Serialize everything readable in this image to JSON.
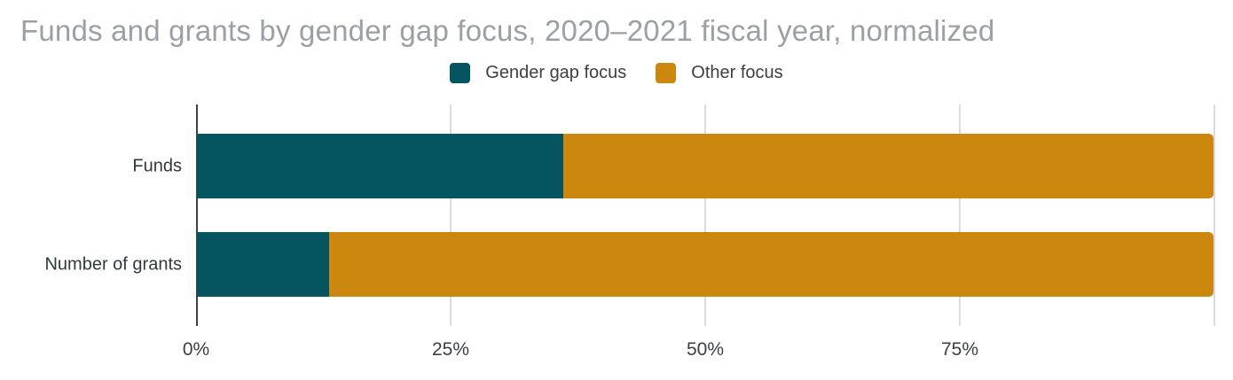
{
  "title": "Funds and grants by gender gap focus, 2020–2021 fiscal year, normalized",
  "colors": {
    "background": "#ffffff",
    "title_text": "#9aa0a6",
    "legend_text": "#3c4043",
    "row_label_text": "#2f3a3e",
    "axis_label_text": "#3c4043",
    "axis_line": "#424242",
    "gridline": "#d9dce0",
    "gender_gap_focus": "#04555f",
    "other_focus": "#cc870f"
  },
  "legend": {
    "items": [
      {
        "label": "Gender gap focus",
        "color": "#04555f"
      },
      {
        "label": "Other focus",
        "color": "#cc870f"
      }
    ]
  },
  "chart_data": {
    "type": "bar",
    "orientation": "horizontal",
    "stacked": true,
    "normalized": true,
    "title": "Funds and grants by gender gap focus, 2020–2021 fiscal year, normalized",
    "categories": [
      "Funds",
      "Number of grants"
    ],
    "series": [
      {
        "name": "Gender gap focus",
        "color": "#04555f",
        "values": [
          36,
          13
        ]
      },
      {
        "name": "Other focus",
        "color": "#cc870f",
        "values": [
          64,
          87
        ]
      }
    ],
    "xlabel": "",
    "ylabel": "",
    "xlim": [
      0,
      100
    ],
    "x_ticks": [
      {
        "value": 0,
        "label": "0%"
      },
      {
        "value": 25,
        "label": "25%"
      },
      {
        "value": 50,
        "label": "50%"
      },
      {
        "value": 75,
        "label": "75%"
      },
      {
        "value": 100,
        "label": ""
      }
    ],
    "grid": true,
    "legend_position": "top"
  }
}
